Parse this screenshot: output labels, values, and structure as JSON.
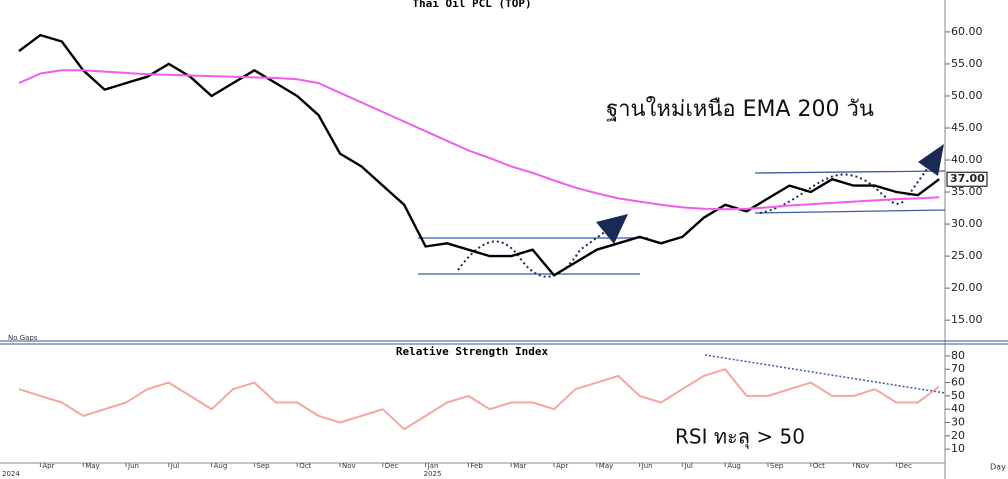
{
  "chart_data": [
    {
      "type": "line",
      "title": "Thai Oil PCL (TOP)",
      "annotation": "ฐานใหม่เหนือ EMA 200 วัน",
      "last_label": "37.00",
      "note": "No Gaps",
      "ylim": [
        11.9,
        64.2
      ],
      "yticks": [
        {
          "value": 15,
          "label": "15.00"
        },
        {
          "value": 20,
          "label": "20.00"
        },
        {
          "value": 25,
          "label": "25.00"
        },
        {
          "value": 30,
          "label": "30.00"
        },
        {
          "value": 35,
          "label": "35.00"
        },
        {
          "value": 40,
          "label": "40.00"
        },
        {
          "value": 45,
          "label": "45.00"
        },
        {
          "value": 50,
          "label": "50.00"
        },
        {
          "value": 55,
          "label": "55.00"
        },
        {
          "value": 60,
          "label": "60.00"
        }
      ],
      "series": [
        {
          "color": "#000000",
          "values": [
            57,
            59.5,
            58.5,
            54,
            51,
            52,
            53,
            55,
            53,
            50,
            52,
            54,
            52,
            50,
            47,
            41,
            39,
            36,
            33,
            26.5,
            27,
            26,
            25,
            25,
            26,
            22,
            24,
            26,
            27,
            28,
            27,
            28,
            31,
            33,
            32,
            34,
            36,
            35,
            37,
            36,
            36,
            35,
            34.5,
            37
          ]
        },
        {
          "color": "#f05cf0",
          "values": [
            52,
            53.5,
            54,
            54,
            53.8,
            53.6,
            53.4,
            53.3,
            53.2,
            53.1,
            53,
            52.9,
            52.8,
            52.6,
            52,
            50.5,
            49,
            47.5,
            46,
            44.5,
            43,
            41.5,
            40.3,
            39,
            38,
            36.8,
            35.7,
            34.8,
            34,
            33.5,
            33,
            32.6,
            32.4,
            32.3,
            32.4,
            32.6,
            32.9,
            33.1,
            33.3,
            33.5,
            33.7,
            33.9,
            34,
            34.2
          ]
        }
      ]
    },
    {
      "type": "line",
      "title": "Relative Strength Index",
      "annotation": "RSI ทะลุ > 50",
      "x_axis_label": "Day",
      "categories": [
        null,
        "Apr",
        null,
        "May",
        null,
        "Jun",
        null,
        "Jul",
        null,
        "Aug",
        null,
        "Sep",
        null,
        "Oct",
        null,
        "Nov",
        null,
        "Dec",
        null,
        "Jan",
        null,
        "Feb",
        null,
        "Mar",
        null,
        "Apr",
        null,
        "May",
        null,
        "Jun",
        null,
        "Jul",
        null,
        "Aug",
        null,
        "Sep",
        null,
        "Oct",
        null,
        "Nov",
        null,
        "Dec",
        null,
        null
      ],
      "years": [
        "2024",
        null,
        null,
        null,
        null,
        null,
        null,
        null,
        null,
        null,
        null,
        null,
        null,
        null,
        null,
        null,
        null,
        null,
        null,
        "2025",
        null,
        null,
        null,
        null,
        null,
        null,
        null,
        null,
        null,
        null,
        null,
        null,
        null,
        null,
        null,
        null,
        null,
        null,
        null,
        null,
        null,
        null,
        null,
        null
      ],
      "ylim": [
        -0.4,
        88.2
      ],
      "yticks": [
        10,
        20,
        30,
        40,
        50,
        60,
        70,
        80
      ],
      "series": [
        {
          "color": "#f4a6a0",
          "values": [
            55,
            50,
            45,
            35,
            40,
            45,
            55,
            60,
            50,
            40,
            55,
            60,
            45,
            45,
            35,
            30,
            35,
            40,
            25,
            35,
            45,
            50,
            40,
            45,
            45,
            40,
            55,
            60,
            65,
            50,
            45,
            55,
            65,
            70,
            50,
            50,
            55,
            60,
            50,
            50,
            55,
            45,
            45,
            57
          ]
        }
      ]
    }
  ]
}
